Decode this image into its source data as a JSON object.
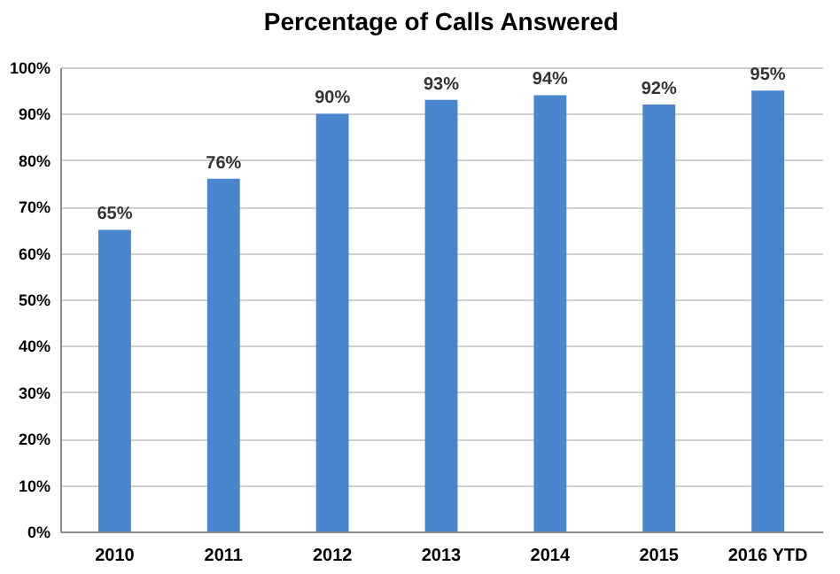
{
  "chart_data": {
    "type": "bar",
    "title": "Percentage of Calls Answered",
    "categories": [
      "2010",
      "2011",
      "2012",
      "2013",
      "2014",
      "2015",
      "2016 YTD"
    ],
    "values": [
      65,
      76,
      90,
      93,
      94,
      92,
      95
    ],
    "color": "#4a86cd",
    "value_labels": [
      "65%",
      "76%",
      "90%",
      "93%",
      "94%",
      "92%",
      "95%"
    ],
    "ylim": [
      0,
      100
    ],
    "yticks": [
      {
        "value": 0,
        "label": "0%"
      },
      {
        "value": 10,
        "label": "10%"
      },
      {
        "value": 20,
        "label": "20%"
      },
      {
        "value": 30,
        "label": "30%"
      },
      {
        "value": 40,
        "label": "40%"
      },
      {
        "value": 50,
        "label": "50%"
      },
      {
        "value": 60,
        "label": "60%"
      },
      {
        "value": 70,
        "label": "70%"
      },
      {
        "value": 80,
        "label": "80%"
      },
      {
        "value": 90,
        "label": "90%"
      },
      {
        "value": 100,
        "label": "100%"
      }
    ],
    "grid": true
  }
}
